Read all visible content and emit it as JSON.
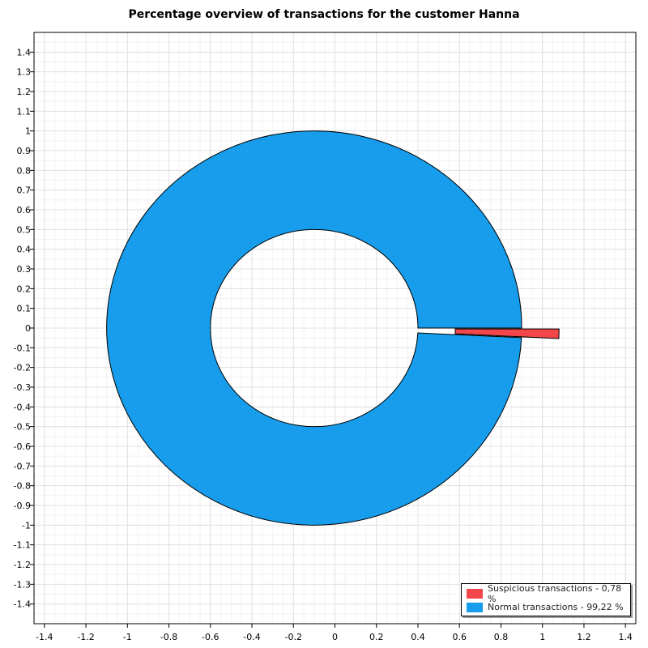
{
  "chart_data": {
    "type": "pie",
    "title": "Percentage overview of transactions for the customer Hanna",
    "xlim": [
      -1.45,
      1.45
    ],
    "ylim": [
      -1.5,
      1.5
    ],
    "x_ticks": [
      "-1.4",
      "-1.2",
      "-1",
      "-0.8",
      "-0.6",
      "-0.4",
      "-0.2",
      "0",
      "0.2",
      "0.4",
      "0.6",
      "0.8",
      "1",
      "1.2",
      "1.4"
    ],
    "y_ticks": [
      "1.4",
      "1.3",
      "1.2",
      "1.1",
      "1",
      "0.9",
      "0.8",
      "0.7",
      "0.6",
      "0.5",
      "0.4",
      "0.3",
      "0.2",
      "0.1",
      "0",
      "-0.1",
      "-0.2",
      "-0.3",
      "-0.4",
      "-0.5",
      "-0.6",
      "-0.7",
      "-0.8",
      "-0.9",
      "-1",
      "-1.1",
      "-1.2",
      "-1.3",
      "-1.4"
    ],
    "grid": true,
    "legend_position": "bottom-right",
    "inner_radius": 0.5,
    "outer_radius": 1.0,
    "slices": [
      {
        "label": "Suspicious transactions - 0,78 %",
        "value": 0.78,
        "color": "#f2464b",
        "exploded": true
      },
      {
        "label": "Normal transactions - 99,22 %",
        "value": 99.22,
        "color": "#179deb",
        "exploded": false
      }
    ]
  }
}
